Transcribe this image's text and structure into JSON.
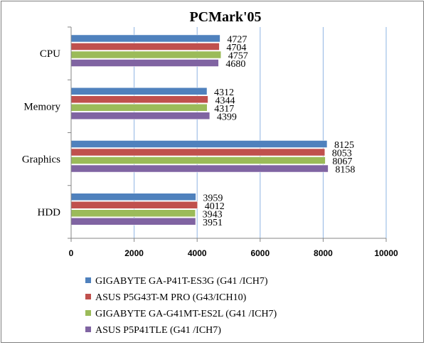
{
  "chart_data": {
    "type": "bar",
    "orientation": "horizontal",
    "title": "PCMark'05",
    "xlabel": "",
    "ylabel": "",
    "categories": [
      "CPU",
      "Memory",
      "Graphics",
      "HDD"
    ],
    "series": [
      {
        "name": "GIGABYTE GA-P41T-ES3G (G41 /ICH7)",
        "color": "#4f81bd",
        "values": [
          4727,
          4312,
          8125,
          3959
        ]
      },
      {
        "name": "ASUS P5G43T-M PRO (G43/ICH10)",
        "color": "#c0504d",
        "values": [
          4704,
          4344,
          8053,
          4012
        ]
      },
      {
        "name": "GIGABYTE GA-G41MT-ES2L (G41 /ICH7)",
        "color": "#9bbb59",
        "values": [
          4757,
          4317,
          8067,
          3943
        ]
      },
      {
        "name": "ASUS P5P41TLE (G41 /ICH7)",
        "color": "#8064a2",
        "values": [
          4680,
          4399,
          8158,
          3951
        ]
      }
    ],
    "xlim": [
      0,
      10000
    ],
    "xticks": [
      0,
      2000,
      4000,
      6000,
      8000,
      10000
    ],
    "grid": "vertical",
    "legend": "bottom"
  }
}
